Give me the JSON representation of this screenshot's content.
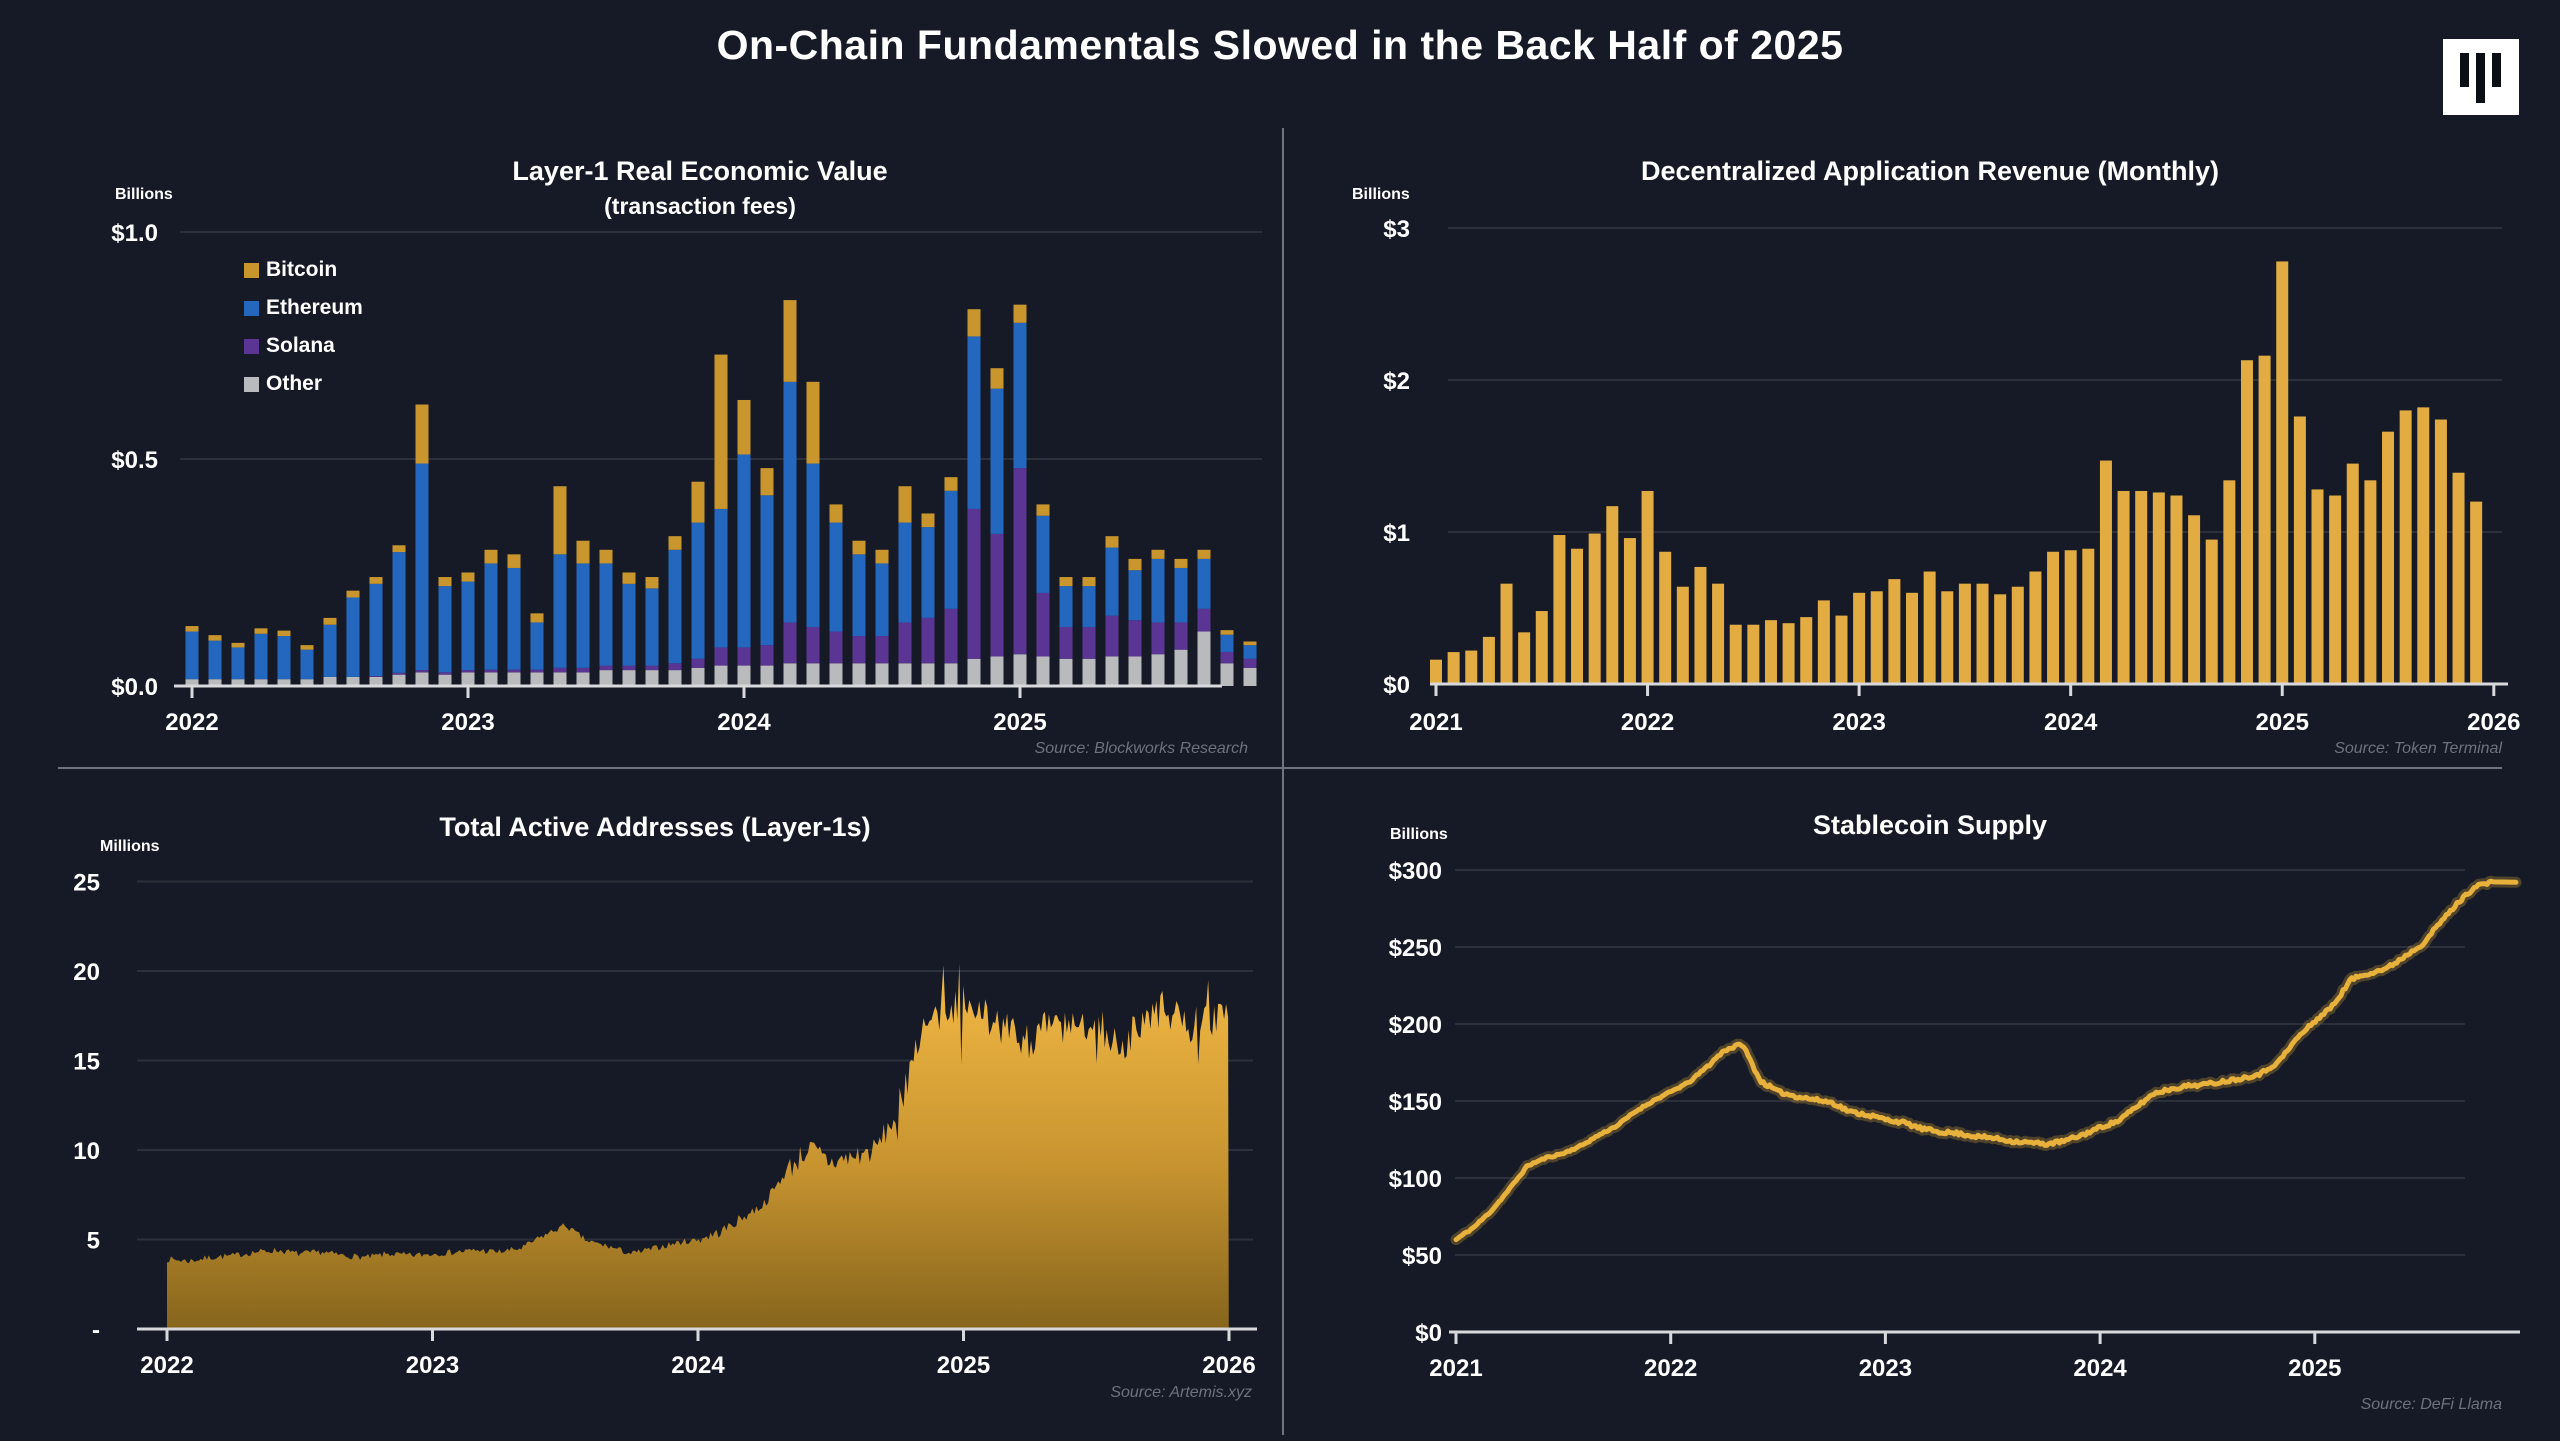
{
  "header": {
    "title": "On-Chain Fundamentals Slowed in the Back Half of 2025",
    "logo": "blockworks-logo"
  },
  "theme": {
    "background": "#161A26",
    "gridline": "#2C303B",
    "axis_line": "#D8D9DC",
    "divider": "#70747E",
    "source_text": "#6E727D",
    "gold": "#E2AC42",
    "bitcoin_gold": "#C9962E",
    "ethereum_blue": "#2368BE",
    "solana_purple": "#5B3593",
    "other_gray": "#B9BABD"
  },
  "chart_data": [
    {
      "id": "layer1-rev",
      "type": "bar",
      "stacked": true,
      "title": "Layer-1 Real Economic Value",
      "subtitle": "(transaction fees)",
      "unit_label": "Billions",
      "source": "Source: Blockworks Research",
      "ylim": [
        0,
        1.1
      ],
      "grid": true,
      "y_ticks": [
        {
          "label": "$1.0",
          "value": 1.0
        },
        {
          "label": "$0.5",
          "value": 0.5
        },
        {
          "label": "$0.0",
          "value": 0.0
        }
      ],
      "x_ticks": [
        {
          "label": "2022",
          "month_index": 0
        },
        {
          "label": "2023",
          "month_index": 12
        },
        {
          "label": "2024",
          "month_index": 24
        },
        {
          "label": "2025",
          "month_index": 36
        }
      ],
      "x_range_note": "monthly Jan 2022 - Nov 2025",
      "legend": [
        {
          "label": "Bitcoin",
          "color": "#C9962E"
        },
        {
          "label": "Ethereum",
          "color": "#2368BE"
        },
        {
          "label": "Solana",
          "color": "#5B3593"
        },
        {
          "label": "Other",
          "color": "#B9BABD"
        }
      ],
      "series": [
        {
          "name": "Other",
          "color": "#B9BABD",
          "values": [
            0.015,
            0.015,
            0.015,
            0.015,
            0.015,
            0.015,
            0.02,
            0.02,
            0.02,
            0.025,
            0.03,
            0.025,
            0.03,
            0.03,
            0.03,
            0.03,
            0.03,
            0.03,
            0.035,
            0.035,
            0.035,
            0.035,
            0.04,
            0.045,
            0.045,
            0.045,
            0.05,
            0.05,
            0.05,
            0.05,
            0.05,
            0.05,
            0.05,
            0.05,
            0.06,
            0.065,
            0.07,
            0.065,
            0.06,
            0.06,
            0.065,
            0.065,
            0.07,
            0.08,
            0.12,
            0.05,
            0.04
          ]
        },
        {
          "name": "Solana",
          "color": "#5B3593",
          "values": [
            0,
            0,
            0,
            0,
            0,
            0,
            0,
            0,
            0.002,
            0.004,
            0.005,
            0.005,
            0.005,
            0.006,
            0.006,
            0.006,
            0.01,
            0.01,
            0.01,
            0.01,
            0.01,
            0.015,
            0.02,
            0.04,
            0.04,
            0.045,
            0.09,
            0.08,
            0.07,
            0.06,
            0.06,
            0.09,
            0.1,
            0.12,
            0.33,
            0.27,
            0.41,
            0.14,
            0.07,
            0.07,
            0.09,
            0.08,
            0.07,
            0.06,
            0.05,
            0.025,
            0.02
          ]
        },
        {
          "name": "Ethereum",
          "color": "#2368BE",
          "values": [
            0.105,
            0.085,
            0.07,
            0.1,
            0.095,
            0.065,
            0.115,
            0.175,
            0.203,
            0.266,
            0.455,
            0.19,
            0.195,
            0.234,
            0.224,
            0.104,
            0.25,
            0.23,
            0.225,
            0.18,
            0.17,
            0.25,
            0.3,
            0.305,
            0.425,
            0.33,
            0.53,
            0.36,
            0.24,
            0.18,
            0.16,
            0.22,
            0.2,
            0.26,
            0.38,
            0.32,
            0.32,
            0.17,
            0.09,
            0.09,
            0.15,
            0.11,
            0.14,
            0.12,
            0.11,
            0.038,
            0.03
          ]
        },
        {
          "name": "Bitcoin",
          "color": "#C9962E",
          "values": [
            0.012,
            0.012,
            0.01,
            0.012,
            0.012,
            0.01,
            0.015,
            0.015,
            0.015,
            0.015,
            0.13,
            0.02,
            0.02,
            0.03,
            0.03,
            0.02,
            0.15,
            0.05,
            0.03,
            0.025,
            0.025,
            0.03,
            0.09,
            0.34,
            0.12,
            0.06,
            0.18,
            0.18,
            0.04,
            0.03,
            0.03,
            0.08,
            0.03,
            0.03,
            0.06,
            0.045,
            0.04,
            0.025,
            0.02,
            0.02,
            0.025,
            0.025,
            0.02,
            0.02,
            0.02,
            0.01,
            0.008
          ]
        }
      ]
    },
    {
      "id": "dapp-revenue",
      "type": "bar",
      "stacked": false,
      "title": "Decentralized Application Revenue (Monthly)",
      "unit_label": "Billions",
      "source": "Source: Token Terminal",
      "ylim": [
        0,
        3.2
      ],
      "grid": true,
      "bar_color": "#E2AC42",
      "y_ticks": [
        {
          "label": "$3",
          "value": 3
        },
        {
          "label": "$2",
          "value": 2
        },
        {
          "label": "$1",
          "value": 1
        },
        {
          "label": "$0",
          "value": 0
        }
      ],
      "x_ticks": [
        {
          "label": "2021",
          "month_index": 0
        },
        {
          "label": "2022",
          "month_index": 12
        },
        {
          "label": "2023",
          "month_index": 24
        },
        {
          "label": "2024",
          "month_index": 36
        },
        {
          "label": "2025",
          "month_index": 48
        },
        {
          "label": "2026",
          "month_index": 60
        }
      ],
      "x_range_note": "monthly Jan 2021 - Dec 2025",
      "values": [
        0.16,
        0.21,
        0.22,
        0.31,
        0.66,
        0.34,
        0.48,
        0.98,
        0.89,
        0.99,
        1.17,
        0.96,
        1.27,
        0.87,
        0.64,
        0.77,
        0.66,
        0.39,
        0.39,
        0.42,
        0.4,
        0.44,
        0.55,
        0.45,
        0.6,
        0.61,
        0.69,
        0.6,
        0.74,
        0.61,
        0.66,
        0.66,
        0.59,
        0.64,
        0.74,
        0.87,
        0.88,
        0.89,
        1.47,
        1.27,
        1.27,
        1.26,
        1.24,
        1.11,
        0.95,
        1.34,
        2.13,
        2.16,
        2.78,
        1.76,
        1.28,
        1.24,
        1.45,
        1.34,
        1.66,
        1.8,
        1.82,
        1.74,
        1.39,
        1.2
      ]
    },
    {
      "id": "active-addresses",
      "type": "area",
      "title": "Total Active Addresses (Layer-1s)",
      "unit_label": "Millions",
      "source": "Source: Artemis.xyz",
      "ylim": [
        0,
        26
      ],
      "grid": true,
      "area_color_top": "#F4BA45",
      "area_color_bottom": "#86651C",
      "y_ticks": [
        {
          "label": "25",
          "value": 25
        },
        {
          "label": "20",
          "value": 20
        },
        {
          "label": "15",
          "value": 15
        },
        {
          "label": "10",
          "value": 10
        },
        {
          "label": "5",
          "value": 5
        },
        {
          "label": "-",
          "value": 0
        }
      ],
      "x_ticks": [
        {
          "label": "2022",
          "month_index": 0
        },
        {
          "label": "2023",
          "month_index": 12
        },
        {
          "label": "2024",
          "month_index": 24
        },
        {
          "label": "2025",
          "month_index": 36
        },
        {
          "label": "2026",
          "month_index": 48
        }
      ],
      "x_range_note": "daily Jan 2022 - Jan 2026, monthly keypoints below",
      "monthly_keypoints": [
        3.9,
        3.8,
        4.0,
        4.1,
        4.3,
        4.4,
        4.2,
        4.3,
        4.1,
        4.0,
        4.2,
        4.1,
        4.2,
        4.3,
        4.4,
        4.3,
        4.5,
        5.2,
        5.8,
        4.9,
        4.6,
        4.2,
        4.5,
        4.8,
        5.0,
        5.4,
        6.2,
        7.0,
        8.8,
        10.1,
        9.3,
        9.6,
        10.0,
        12.0,
        16.5,
        17.5,
        18.2,
        17.6,
        16.6,
        16.1,
        17.1,
        16.6,
        17.4,
        15.6,
        17.0,
        17.9,
        16.9,
        17.3,
        17.4
      ]
    },
    {
      "id": "stablecoin-supply",
      "type": "line",
      "title": "Stablecoin Supply",
      "unit_label": "Billions",
      "source": "Source: DeFi Llama",
      "ylim": [
        0,
        320
      ],
      "grid": true,
      "line_color": "#E7B13C",
      "y_ticks": [
        {
          "label": "$300",
          "value": 300
        },
        {
          "label": "$250",
          "value": 250
        },
        {
          "label": "$200",
          "value": 200
        },
        {
          "label": "$150",
          "value": 150
        },
        {
          "label": "$100",
          "value": 100
        },
        {
          "label": "$50",
          "value": 50
        },
        {
          "label": "$0",
          "value": 0
        }
      ],
      "x_ticks": [
        {
          "label": "2021",
          "month_index": 0
        },
        {
          "label": "2022",
          "month_index": 12
        },
        {
          "label": "2023",
          "month_index": 24
        },
        {
          "label": "2024",
          "month_index": 36
        },
        {
          "label": "2025",
          "month_index": 48
        }
      ],
      "x_range_note": "monthly Jan 2021 - Nov 2025, $ billions",
      "monthly_keypoints": [
        60,
        68,
        79,
        93,
        108,
        113,
        116,
        121,
        128,
        134,
        143,
        150,
        156,
        162,
        172,
        183,
        187,
        163,
        156,
        153,
        151,
        149,
        143,
        141,
        138,
        136,
        132,
        130,
        129,
        127,
        126,
        124,
        123,
        122,
        124,
        128,
        133,
        137,
        146,
        155,
        158,
        160,
        161,
        163,
        165,
        168,
        176,
        191,
        202,
        212,
        229,
        233,
        236,
        244,
        252,
        266,
        279,
        290,
        292
      ]
    }
  ]
}
